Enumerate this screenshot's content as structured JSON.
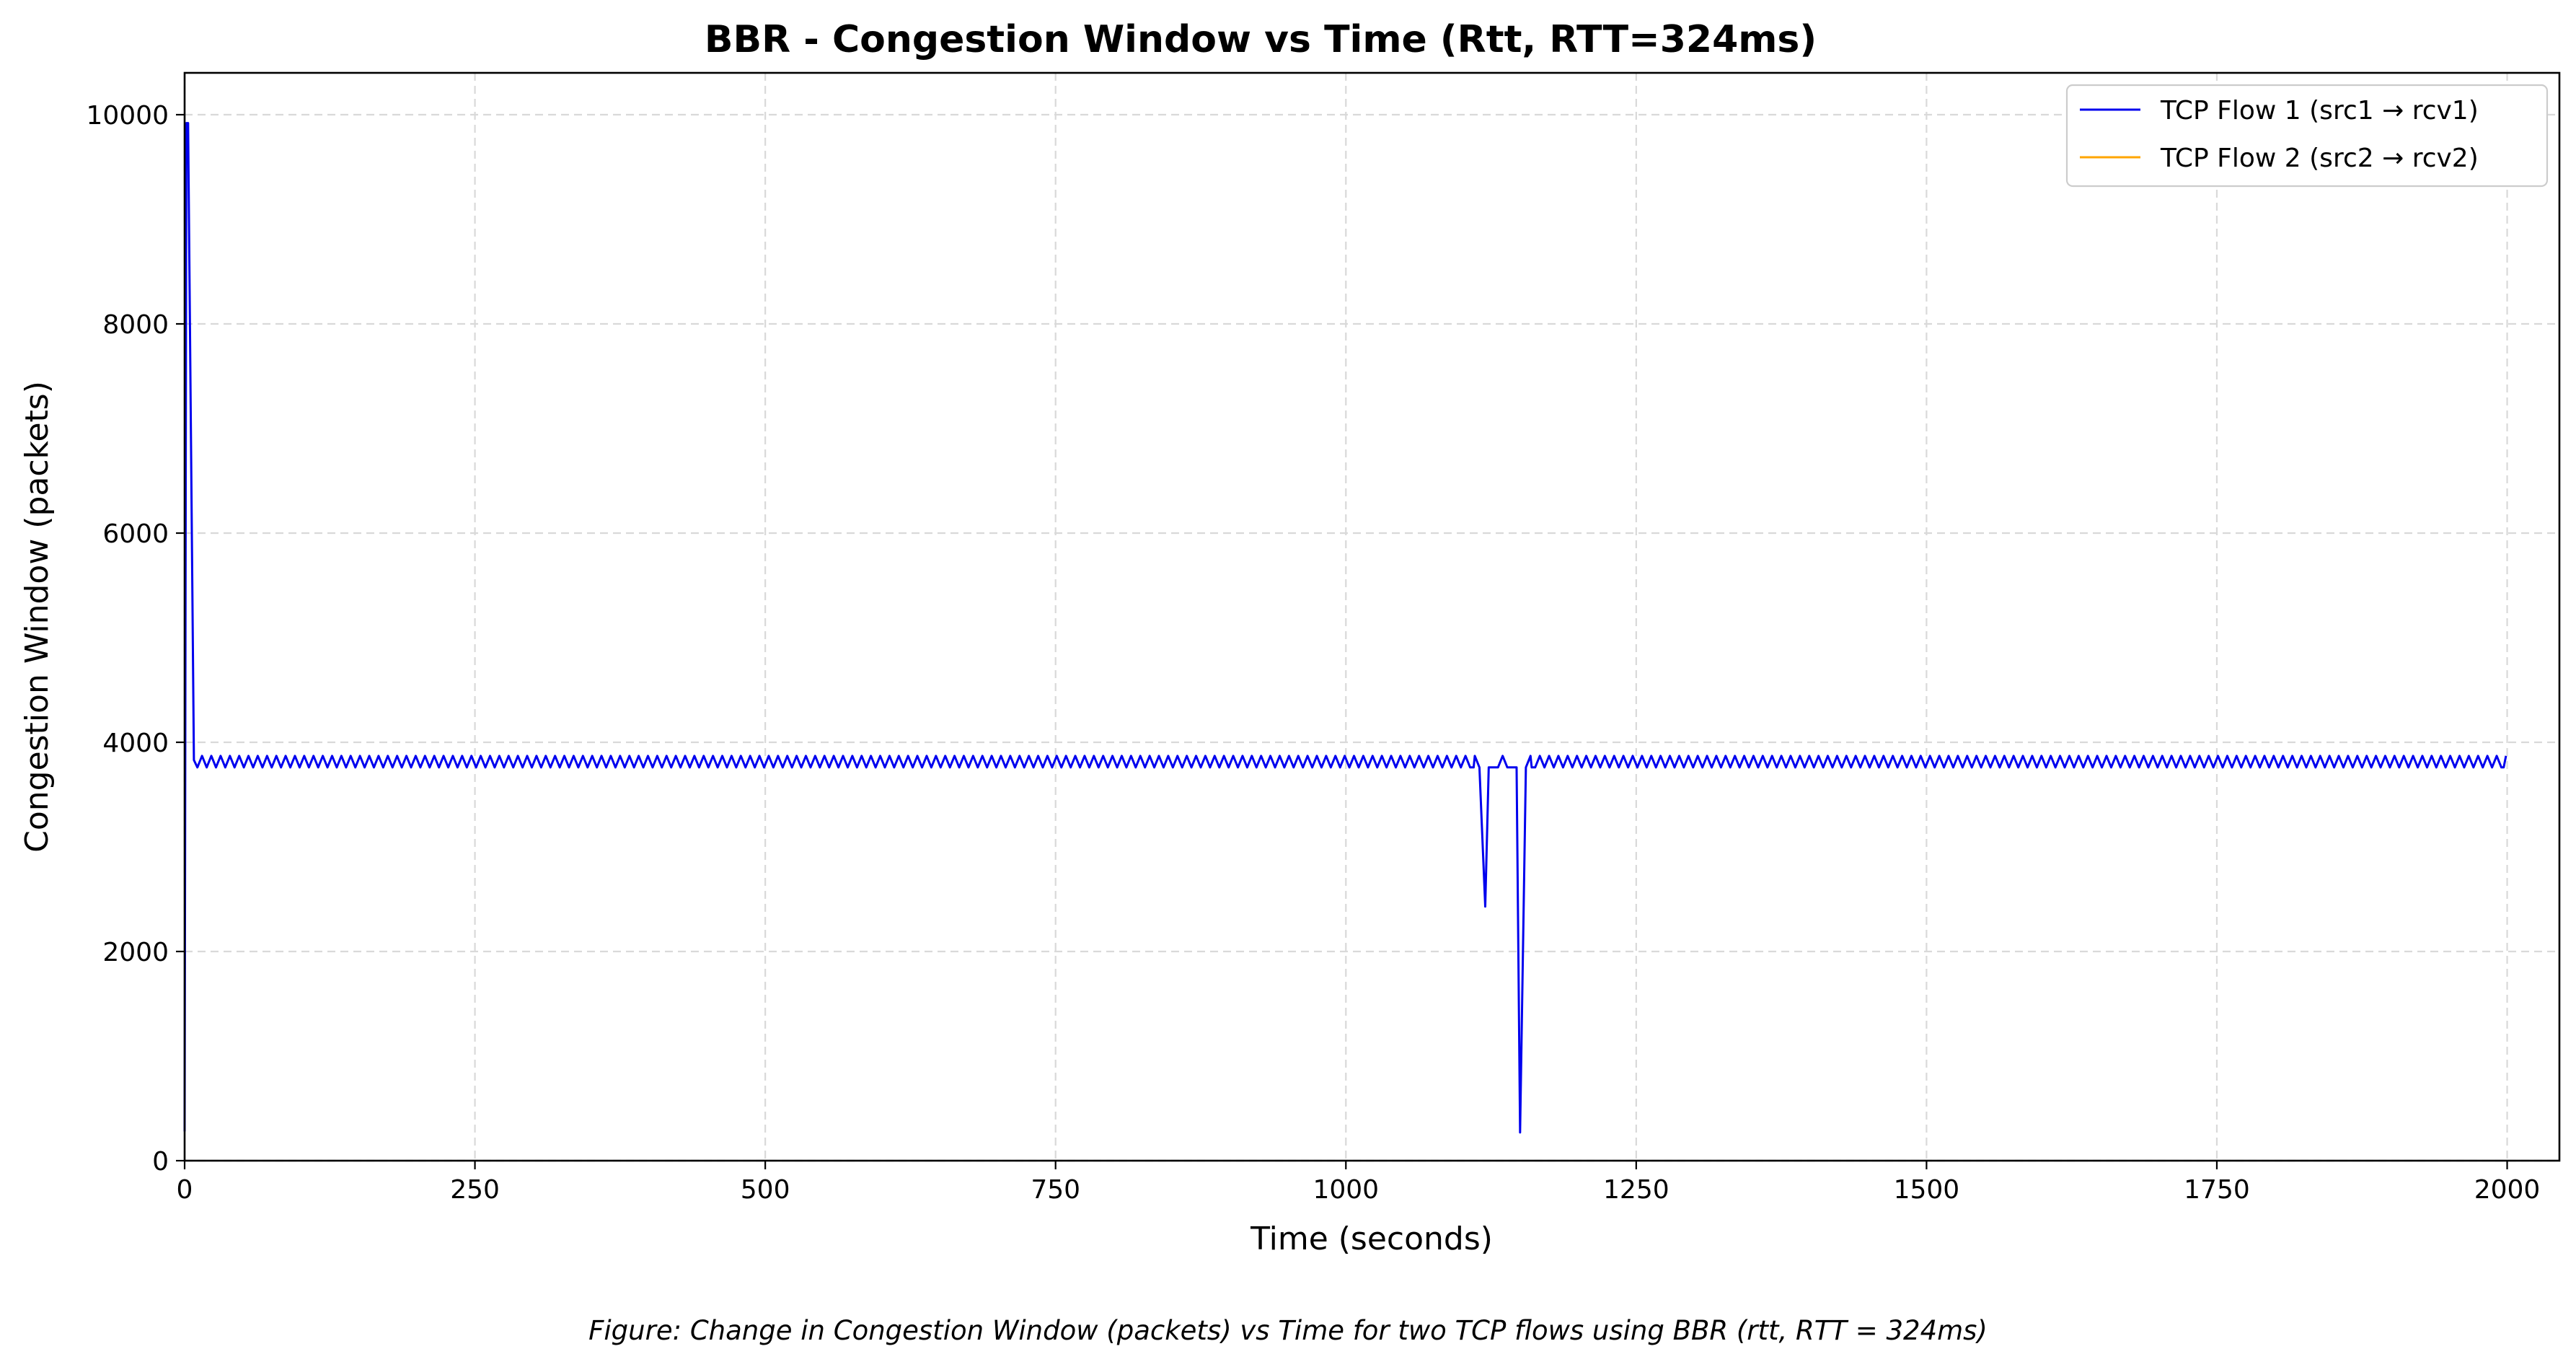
{
  "chart_data": {
    "type": "line",
    "title": "BBR - Congestion Window vs Time (Rtt, RTT=324ms)",
    "xlabel": "Time (seconds)",
    "ylabel": "Congestion Window (packets)",
    "caption": "Figure: Change in Congestion Window (packets) vs Time for two TCP flows using BBR (rtt, RTT = 324ms)",
    "xlim": [
      0,
      2045
    ],
    "ylim": [
      0,
      10400
    ],
    "xticks": [
      "0",
      "250",
      "500",
      "750",
      "1000",
      "1250",
      "1500",
      "1750",
      "2000"
    ],
    "xtick_values": [
      0,
      250,
      500,
      750,
      1000,
      1250,
      1500,
      1750,
      2000
    ],
    "yticks": [
      "0",
      "2000",
      "4000",
      "6000",
      "8000",
      "10000"
    ],
    "ytick_values": [
      0,
      2000,
      4000,
      6000,
      8000,
      10000
    ],
    "grid": true,
    "legend_position": "top-right",
    "series": [
      {
        "name": "TCP Flow 1 (src1 → rcv1)",
        "color": "#0000ee",
        "points": [
          [
            0,
            280
          ],
          [
            1.5,
            9920
          ],
          [
            3,
            9920
          ],
          [
            8,
            3830
          ],
          [
            11,
            3760
          ],
          [
            1110,
            3760
          ],
          [
            1115,
            3760
          ],
          [
            1120,
            2430
          ],
          [
            1124,
            3760
          ],
          [
            1140,
            3760
          ],
          [
            1145,
            3760
          ],
          [
            1150,
            270
          ],
          [
            1155,
            3760
          ],
          [
            1160,
            3760
          ],
          [
            1997,
            3760
          ]
        ],
        "oscillation": {
          "x_start": 11,
          "x_end": 1997,
          "period": 8,
          "low": 3760,
          "high": 3870,
          "skip_ranges": [
            [
              1112,
              1128
            ],
            [
              1142,
              1158
            ]
          ]
        }
      },
      {
        "name": "TCP Flow 2 (src2 → rcv2)",
        "color": "#ffa500",
        "points": []
      }
    ]
  }
}
